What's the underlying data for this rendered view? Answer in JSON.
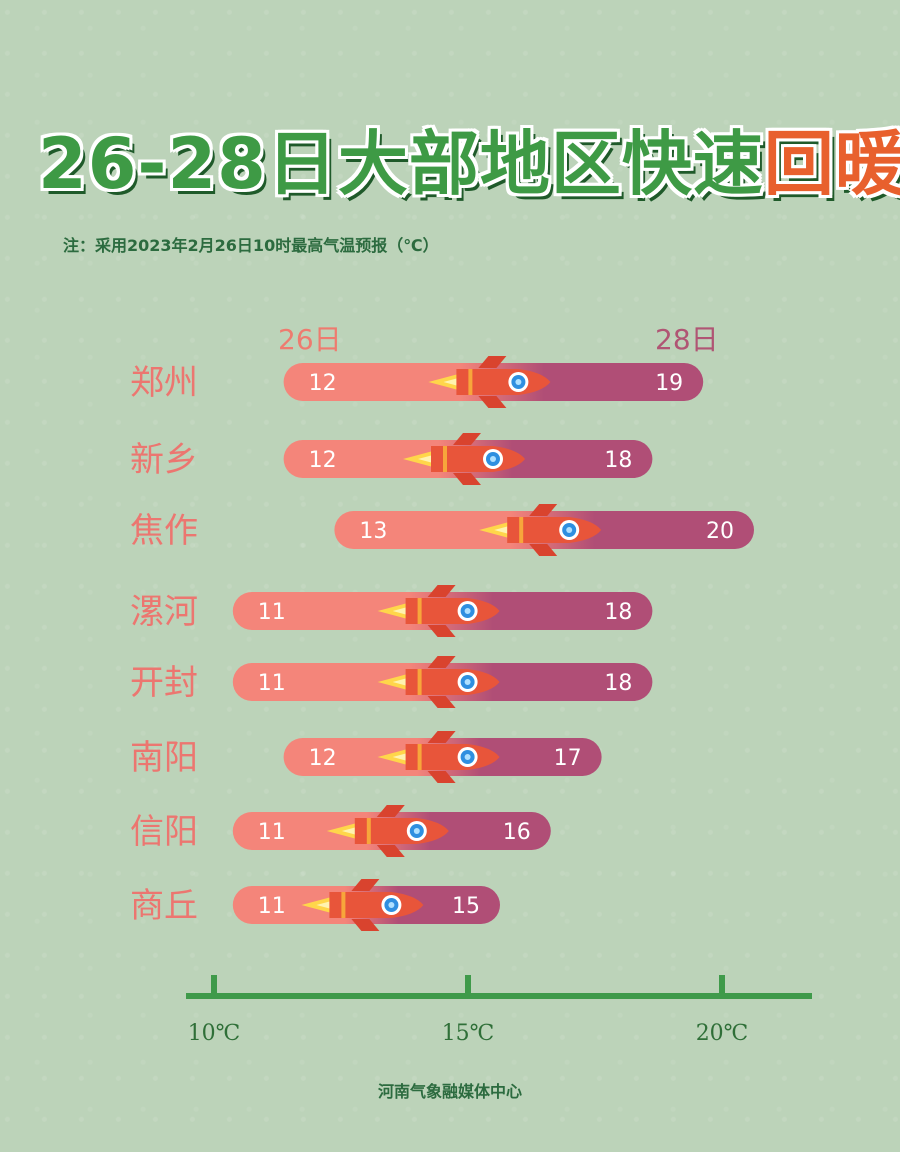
{
  "title": {
    "main": "26-28日大部地区快速",
    "highlight": "回暖"
  },
  "note": "注：采用2023年2月26日10时最高气温预报（℃）",
  "footer": "河南气象融媒体中心",
  "chart_data": {
    "type": "bar",
    "series_labels": {
      "start": "26日",
      "end": "28日"
    },
    "categories": [
      "郑州",
      "新乡",
      "焦作",
      "漯河",
      "开封",
      "南阳",
      "信阳",
      "商丘"
    ],
    "start_values": [
      12,
      12,
      13,
      11,
      11,
      12,
      11,
      11
    ],
    "end_values": [
      19,
      18,
      20,
      18,
      18,
      17,
      16,
      15
    ],
    "x_ticks": [
      10,
      15,
      20
    ],
    "x_tick_labels": [
      "10℃",
      "15℃",
      "20℃"
    ],
    "unit": "℃",
    "colors": {
      "start": "#f4857a",
      "end": "#b04e76",
      "axis": "#3f9a4a",
      "rocket": "#e8553a"
    }
  }
}
